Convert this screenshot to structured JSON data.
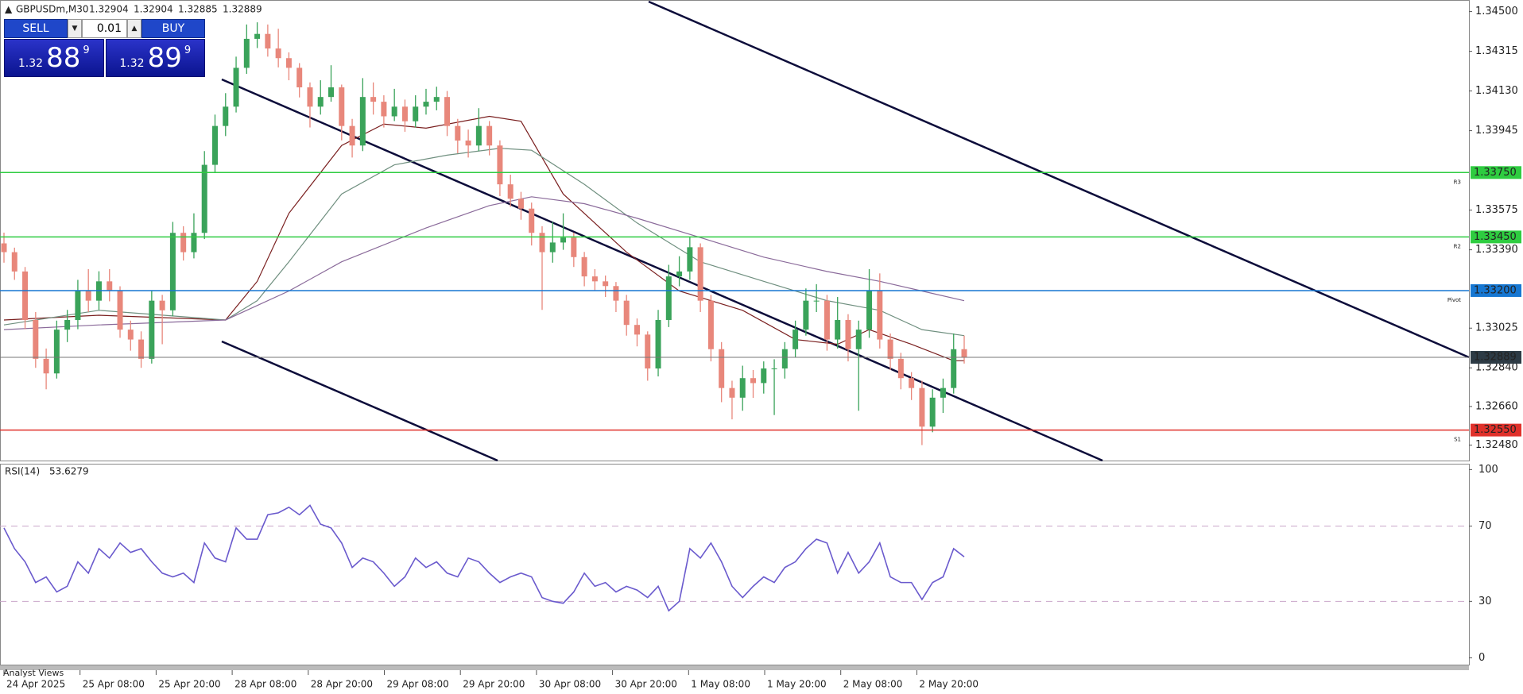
{
  "symbol": "GBPUSDm,M30",
  "last_bar": [
    1.32904,
    1.32904,
    1.32885,
    1.32889
  ],
  "trade_panel": {
    "sell": "SELL",
    "buy": "BUY",
    "volume": "0.01",
    "bid": {
      "big": "1.32",
      "pips": "88",
      "point": "9"
    },
    "ask": {
      "big": "1.32",
      "pips": "89",
      "point": "9"
    }
  },
  "chart_data": [
    {
      "type": "candlestick",
      "colors": {
        "up": "#3aa35a",
        "down": "#e8877b"
      },
      "ylim": [
        1.32408,
        1.34554
      ],
      "yticks": [
        {
          "value": 1.345,
          "label": "1.34500"
        },
        {
          "value": 1.34315,
          "label": "1.34315"
        },
        {
          "value": 1.3413,
          "label": "1.34130"
        },
        {
          "value": 1.33945,
          "label": "1.33945"
        },
        {
          "value": 1.33575,
          "label": "1.33575"
        },
        {
          "value": 1.3339,
          "label": "1.33390"
        },
        {
          "value": 1.33025,
          "label": "1.33025"
        },
        {
          "value": 1.3284,
          "label": "1.32840"
        },
        {
          "value": 1.3266,
          "label": "1.32660"
        },
        {
          "value": 1.3248,
          "label": "1.32480"
        }
      ],
      "candles": [
        [
          1.3342,
          1.3347,
          1.3333,
          1.33379
        ],
        [
          1.33379,
          1.334,
          1.3325,
          1.33289
        ],
        [
          1.33289,
          1.3331,
          1.3302,
          1.33063
        ],
        [
          1.33063,
          1.331,
          1.3284,
          1.32882
        ],
        [
          1.32882,
          1.3293,
          1.3274,
          1.32814
        ],
        [
          1.32814,
          1.3306,
          1.3279,
          1.33018
        ],
        [
          1.33018,
          1.3311,
          1.3296,
          1.33063
        ],
        [
          1.33063,
          1.3325,
          1.3302,
          1.33198
        ],
        [
          1.33198,
          1.333,
          1.331,
          1.33153
        ],
        [
          1.33153,
          1.3329,
          1.3311,
          1.33243
        ],
        [
          1.33243,
          1.333,
          1.3315,
          1.33198
        ],
        [
          1.33198,
          1.3322,
          1.3298,
          1.33018
        ],
        [
          1.33018,
          1.3306,
          1.3292,
          1.32972
        ],
        [
          1.32972,
          1.3301,
          1.3284,
          1.32882
        ],
        [
          1.32882,
          1.332,
          1.3286,
          1.33153
        ],
        [
          1.33153,
          1.3318,
          1.3295,
          1.33108
        ],
        [
          1.33108,
          1.3352,
          1.3308,
          1.33469
        ],
        [
          1.33469,
          1.335,
          1.3334,
          1.33379
        ],
        [
          1.33379,
          1.3356,
          1.3335,
          1.33469
        ],
        [
          1.33469,
          1.3385,
          1.3344,
          1.33786
        ],
        [
          1.33786,
          1.3402,
          1.3375,
          1.33967
        ],
        [
          1.33967,
          1.3412,
          1.3392,
          1.34057
        ],
        [
          1.34057,
          1.3429,
          1.3403,
          1.34238
        ],
        [
          1.34238,
          1.3444,
          1.3421,
          1.34373
        ],
        [
          1.34373,
          1.3445,
          1.3433,
          1.34396
        ],
        [
          1.34396,
          1.3444,
          1.3429,
          1.34328
        ],
        [
          1.34328,
          1.3442,
          1.3424,
          1.34283
        ],
        [
          1.34283,
          1.3431,
          1.3418,
          1.34238
        ],
        [
          1.34238,
          1.3426,
          1.341,
          1.34147
        ],
        [
          1.34147,
          1.3417,
          1.3396,
          1.34057
        ],
        [
          1.34057,
          1.3418,
          1.3402,
          1.34102
        ],
        [
          1.34102,
          1.3425,
          1.3408,
          1.34147
        ],
        [
          1.34147,
          1.3416,
          1.339,
          1.33967
        ],
        [
          1.33967,
          1.34,
          1.3382,
          1.33876
        ],
        [
          1.33876,
          1.3419,
          1.3385,
          1.34102
        ],
        [
          1.34102,
          1.3417,
          1.3402,
          1.3408
        ],
        [
          1.3408,
          1.3411,
          1.3396,
          1.34012
        ],
        [
          1.34012,
          1.3414,
          1.3399,
          1.34057
        ],
        [
          1.34057,
          1.3409,
          1.3394,
          1.33989
        ],
        [
          1.33989,
          1.3411,
          1.3396,
          1.34057
        ],
        [
          1.34057,
          1.3414,
          1.3402,
          1.3408
        ],
        [
          1.3408,
          1.3415,
          1.3404,
          1.34102
        ],
        [
          1.34102,
          1.3413,
          1.3392,
          1.33967
        ],
        [
          1.33967,
          1.34,
          1.3384,
          1.33899
        ],
        [
          1.33899,
          1.3395,
          1.3382,
          1.33876
        ],
        [
          1.33876,
          1.3405,
          1.3385,
          1.33967
        ],
        [
          1.33967,
          1.3399,
          1.3383,
          1.33876
        ],
        [
          1.33876,
          1.339,
          1.3364,
          1.33695
        ],
        [
          1.33695,
          1.3374,
          1.3359,
          1.33628
        ],
        [
          1.33628,
          1.3366,
          1.3353,
          1.33582
        ],
        [
          1.33582,
          1.3361,
          1.3341,
          1.33469
        ],
        [
          1.33469,
          1.335,
          1.3311,
          1.33379
        ],
        [
          1.33379,
          1.3352,
          1.3333,
          1.33424
        ],
        [
          1.33424,
          1.3356,
          1.3339,
          1.33447
        ],
        [
          1.33447,
          1.3347,
          1.3331,
          1.33356
        ],
        [
          1.33356,
          1.3338,
          1.3322,
          1.33266
        ],
        [
          1.33266,
          1.333,
          1.332,
          1.33243
        ],
        [
          1.33243,
          1.3327,
          1.3317,
          1.33221
        ],
        [
          1.33221,
          1.3324,
          1.331,
          1.33153
        ],
        [
          1.33153,
          1.3318,
          1.3299,
          1.3304
        ],
        [
          1.3304,
          1.3307,
          1.3294,
          1.32995
        ],
        [
          1.32995,
          1.3301,
          1.3278,
          1.32837
        ],
        [
          1.32837,
          1.3311,
          1.328,
          1.33063
        ],
        [
          1.33063,
          1.3332,
          1.3303,
          1.33266
        ],
        [
          1.33266,
          1.3336,
          1.3322,
          1.33289
        ],
        [
          1.33289,
          1.3345,
          1.3325,
          1.33402
        ],
        [
          1.33402,
          1.3342,
          1.331,
          1.33153
        ],
        [
          1.33153,
          1.3318,
          1.3287,
          1.32927
        ],
        [
          1.32927,
          1.3296,
          1.3268,
          1.32746
        ],
        [
          1.32746,
          1.3278,
          1.326,
          1.32701
        ],
        [
          1.32701,
          1.3285,
          1.3264,
          1.32792
        ],
        [
          1.32792,
          1.3283,
          1.327,
          1.32769
        ],
        [
          1.32769,
          1.3287,
          1.3272,
          1.32837
        ],
        [
          1.32837,
          1.3288,
          1.3262,
          1.32837
        ],
        [
          1.32837,
          1.3296,
          1.3279,
          1.32927
        ],
        [
          1.32927,
          1.3306,
          1.3289,
          1.33018
        ],
        [
          1.33018,
          1.3321,
          1.3299,
          1.33153
        ],
        [
          1.33153,
          1.3323,
          1.331,
          1.33153
        ],
        [
          1.33153,
          1.3318,
          1.3292,
          1.32972
        ],
        [
          1.32972,
          1.3317,
          1.3293,
          1.33063
        ],
        [
          1.33063,
          1.3309,
          1.3287,
          1.32927
        ],
        [
          1.32927,
          1.3306,
          1.3264,
          1.33018
        ],
        [
          1.33018,
          1.333,
          1.3298,
          1.33198
        ],
        [
          1.33198,
          1.3328,
          1.3293,
          1.32972
        ],
        [
          1.32972,
          1.33,
          1.3283,
          1.32882
        ],
        [
          1.32882,
          1.3291,
          1.3274,
          1.32792
        ],
        [
          1.32792,
          1.3282,
          1.3269,
          1.32746
        ],
        [
          1.32746,
          1.3278,
          1.3248,
          1.32566
        ],
        [
          1.32566,
          1.3274,
          1.3254,
          1.32701
        ],
        [
          1.32701,
          1.3279,
          1.3263,
          1.32746
        ],
        [
          1.32746,
          1.33,
          1.3272,
          1.32927
        ],
        [
          1.32927,
          1.3299,
          1.3286,
          1.32889
        ]
      ],
      "moving_averages": [
        {
          "color": "#7a1f1f",
          "x": [
            0,
            9,
            21,
            24,
            27,
            32,
            36,
            40,
            46,
            49,
            53,
            59,
            64,
            70,
            75,
            79,
            82,
            86,
            90,
            91
          ],
          "values": [
            1.33063,
            1.33085,
            1.33063,
            1.33243,
            1.3356,
            1.33876,
            1.33976,
            1.33957,
            1.34012,
            1.33989,
            1.3365,
            1.33379,
            1.33198,
            1.33108,
            1.32972,
            1.3295,
            1.33018,
            1.3295,
            1.32873,
            1.32873
          ]
        },
        {
          "color": "#6f8f7f",
          "x": [
            0,
            9,
            21,
            24,
            27,
            32,
            37,
            42,
            47,
            50,
            55,
            60,
            66,
            72,
            78,
            83,
            87,
            91
          ],
          "values": [
            1.3304,
            1.33108,
            1.33063,
            1.33153,
            1.33334,
            1.3365,
            1.33786,
            1.33831,
            1.33863,
            1.33854,
            1.33695,
            1.33515,
            1.33334,
            1.33243,
            1.33153,
            1.33108,
            1.33018,
            1.3299
          ]
        },
        {
          "color": "#8a6a9a",
          "x": [
            0,
            9,
            21,
            27,
            32,
            40,
            46,
            50,
            55,
            60,
            66,
            72,
            78,
            83,
            87,
            91
          ],
          "values": [
            1.33018,
            1.3304,
            1.33063,
            1.33198,
            1.33334,
            1.33492,
            1.33596,
            1.33637,
            1.33605,
            1.33537,
            1.33447,
            1.33356,
            1.33289,
            1.33243,
            1.33198,
            1.33153
          ]
        }
      ],
      "levels": [
        {
          "name": "R3",
          "value": 1.3375,
          "value_label": "1.33750",
          "color": "#2ecc40"
        },
        {
          "name": "R2",
          "value": 1.3345,
          "value_label": "1.33450",
          "color": "#2ecc40"
        },
        {
          "name": "Pivot",
          "value": 1.332,
          "value_label": "1.33200",
          "color": "#1677d2"
        },
        {
          "name": "S1",
          "value": 1.3255,
          "value_label": "1.32550",
          "color": "#e0312b"
        }
      ],
      "current": {
        "value": 1.32889,
        "label": "1.32889",
        "color": "#2d3b45"
      }
    },
    {
      "type": "line",
      "title": "RSI(14)",
      "color": "#6a5acd",
      "ylim": [
        -3.6,
        103.1
      ],
      "yticks": [
        100,
        70,
        30,
        0
      ],
      "dashed": [
        70,
        30
      ],
      "values": [
        69,
        58,
        51,
        40,
        43,
        35,
        38,
        51,
        45,
        58,
        53,
        61,
        56,
        58,
        51,
        45,
        43,
        45,
        40,
        61,
        53,
        51,
        69,
        63,
        63,
        76,
        77,
        80,
        76,
        81,
        71,
        69,
        61,
        48,
        53,
        51,
        45,
        38,
        43,
        53,
        48,
        51,
        45,
        43,
        53,
        51,
        45,
        40,
        43,
        45,
        43,
        32,
        30,
        29,
        35,
        45,
        38,
        40,
        35,
        38,
        36,
        32,
        38,
        25,
        30,
        58,
        53,
        61,
        51,
        38,
        32,
        38,
        43,
        40,
        48,
        51,
        58,
        63,
        61,
        45,
        56,
        45,
        51,
        61,
        43,
        40,
        40,
        31,
        40,
        43,
        58,
        53.6279
      ]
    }
  ],
  "x_labels": [
    "24 Apr 2025",
    "25 Apr 08:00",
    "25 Apr 20:00",
    "28 Apr 08:00",
    "28 Apr 20:00",
    "29 Apr 08:00",
    "29 Apr 20:00",
    "30 Apr 08:00",
    "30 Apr 20:00",
    "1 May 08:00",
    "1 May 20:00",
    "2 May 08:00",
    "2 May 20:00"
  ],
  "footer": "Analyst Views"
}
